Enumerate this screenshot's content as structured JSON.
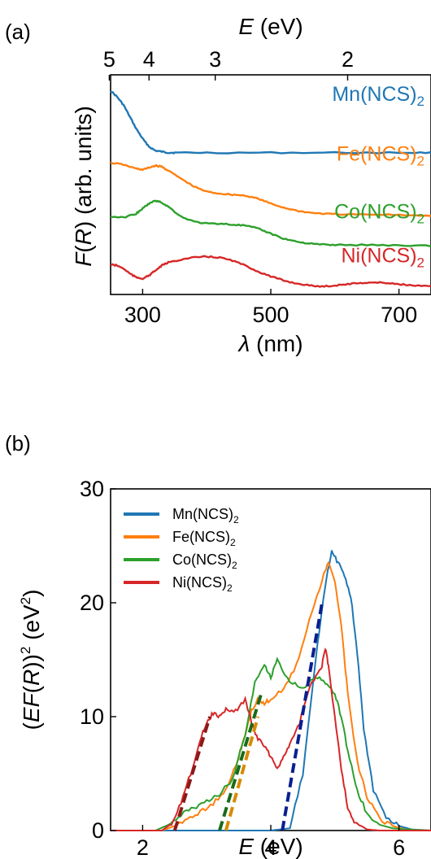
{
  "panel_labels": {
    "a": "(a)",
    "b": "(b)"
  },
  "colors": {
    "Mn": "#1f77b4",
    "Fe": "#ff7f0e",
    "Co": "#2ca02c",
    "Ni": "#d62728",
    "fit_Ni": "#8b1a1a",
    "fit_Co": "#1a6b1a",
    "fit_Fe": "#d88a00",
    "fit_Mn": "#0a1f8f"
  },
  "chart_data": [
    {
      "type": "line",
      "panel": "a",
      "xlabel_prefix": "λ",
      "xlabel_suffix": " (nm)",
      "ylabel_F": "F",
      "ylabel_R": "R",
      "ylabel_suffix": " (arb. units)",
      "top_label_E": "E",
      "top_label_suffix": " (eV)",
      "xlim": [
        250,
        750
      ],
      "xticks": [
        300,
        500,
        700
      ],
      "top_ticks": [
        5,
        4,
        3,
        2
      ],
      "series": [
        {
          "key": "Mn",
          "label": "Mn(NCS)",
          "sub": "2",
          "color": "#1f77b4",
          "x": [
            250,
            260,
            270,
            280,
            290,
            300,
            310,
            320,
            330,
            340,
            350,
            400,
            500,
            600,
            700,
            750
          ],
          "y": [
            9.6,
            9.3,
            8.9,
            8.3,
            7.7,
            7.2,
            6.8,
            6.6,
            6.55,
            6.5,
            6.5,
            6.5,
            6.5,
            6.5,
            6.5,
            6.5
          ]
        },
        {
          "key": "Fe",
          "label": "Fe(NCS)",
          "sub": "2",
          "color": "#ff7f0e",
          "x": [
            250,
            270,
            290,
            300,
            310,
            320,
            330,
            340,
            360,
            380,
            400,
            420,
            440,
            460,
            480,
            500,
            520,
            540,
            560,
            580,
            600,
            650,
            700,
            750
          ],
          "y": [
            6.0,
            5.9,
            5.7,
            5.65,
            5.75,
            5.85,
            5.8,
            5.6,
            5.2,
            4.8,
            4.55,
            4.45,
            4.4,
            4.35,
            4.2,
            3.95,
            3.75,
            3.6,
            3.5,
            3.45,
            3.42,
            3.4,
            3.38,
            3.35
          ]
        },
        {
          "key": "Co",
          "label": "Co(NCS)",
          "sub": "2",
          "color": "#2ca02c",
          "x": [
            250,
            270,
            290,
            300,
            310,
            320,
            330,
            340,
            360,
            380,
            400,
            420,
            440,
            460,
            480,
            500,
            520,
            540,
            560,
            580,
            600,
            650,
            700,
            750
          ],
          "y": [
            3.3,
            3.25,
            3.45,
            3.7,
            3.95,
            4.1,
            4.0,
            3.8,
            3.3,
            3.05,
            2.95,
            2.95,
            2.9,
            2.85,
            2.7,
            2.45,
            2.2,
            2.05,
            1.95,
            1.9,
            1.88,
            1.88,
            1.86,
            1.84
          ]
        },
        {
          "key": "Ni",
          "label": "Ni(NCS)",
          "sub": "2",
          "color": "#d62728",
          "x": [
            250,
            260,
            270,
            280,
            290,
            300,
            310,
            320,
            330,
            340,
            360,
            380,
            400,
            420,
            440,
            460,
            480,
            500,
            520,
            540,
            560,
            580,
            600,
            620,
            640,
            660,
            680,
            700,
            720,
            750
          ],
          "y": [
            0.9,
            0.85,
            0.7,
            0.45,
            0.25,
            0.2,
            0.35,
            0.6,
            0.85,
            1.0,
            1.15,
            1.25,
            1.3,
            1.25,
            1.1,
            0.85,
            0.55,
            0.3,
            0.1,
            -0.05,
            -0.15,
            -0.2,
            -0.15,
            -0.08,
            -0.02,
            0.0,
            -0.02,
            -0.08,
            -0.15,
            -0.2
          ]
        }
      ]
    },
    {
      "type": "line",
      "panel": "b",
      "xlabel_E": "E",
      "xlabel_suffix": " (eV)",
      "ylabel_prefix": "(",
      "ylabel_E": "EF",
      "ylabel_mid": "(",
      "ylabel_R": "R",
      "ylabel_close": "))",
      "ylabel_units_prefix": " (eV",
      "ylabel_units_close": ")",
      "sup": "2",
      "xlim": [
        1.5,
        6.5
      ],
      "ylim": [
        0,
        30
      ],
      "xticks": [
        2,
        4,
        6
      ],
      "yticks": [
        0,
        10,
        20,
        30
      ],
      "legend_position": "top-left",
      "series": [
        {
          "key": "Mn",
          "label": "Mn(NCS)",
          "sub": "2",
          "color": "#1f77b4",
          "x": [
            1.5,
            2.5,
            3.5,
            4.0,
            4.3,
            4.5,
            4.7,
            4.85,
            4.95,
            5.05,
            5.15,
            5.25,
            5.35,
            5.45,
            5.6,
            5.8,
            6.0,
            6.2,
            6.5
          ],
          "y": [
            0,
            0,
            0,
            0,
            0.2,
            5,
            15,
            21.5,
            24.5,
            23.5,
            22.5,
            20.5,
            15.5,
            9,
            3.5,
            1.2,
            0.4,
            0.1,
            0
          ]
        },
        {
          "key": "Fe",
          "label": "Fe(NCS)",
          "sub": "2",
          "color": "#ff7f0e",
          "x": [
            1.5,
            2.3,
            2.5,
            2.7,
            2.9,
            3.1,
            3.3,
            3.5,
            3.6,
            3.7,
            3.8,
            3.9,
            4.0,
            4.2,
            4.4,
            4.6,
            4.8,
            4.9,
            5.0,
            5.1,
            5.2,
            5.35,
            5.5,
            5.7,
            5.9,
            6.1,
            6.5
          ],
          "y": [
            0,
            0,
            0.4,
            1.0,
            1.6,
            2.4,
            3.5,
            6.5,
            8.5,
            10.5,
            11.5,
            11.2,
            11.5,
            12.5,
            14.5,
            18.5,
            22,
            23.5,
            22,
            18,
            12,
            6,
            3,
            1,
            0.4,
            0.1,
            0
          ]
        },
        {
          "key": "Co",
          "label": "Co(NCS)",
          "sub": "2",
          "color": "#2ca02c",
          "x": [
            1.5,
            2.2,
            2.4,
            2.6,
            2.8,
            3.0,
            3.2,
            3.4,
            3.6,
            3.75,
            3.9,
            4.0,
            4.1,
            4.3,
            4.5,
            4.7,
            4.85,
            5.0,
            5.1,
            5.2,
            5.35,
            5.5,
            5.7,
            5.9,
            6.1,
            6.5
          ],
          "y": [
            0,
            0,
            0.5,
            1.4,
            2.0,
            2.6,
            3.2,
            4.5,
            8.5,
            13,
            14.5,
            13.5,
            15,
            13,
            12.5,
            13.5,
            13,
            12,
            10,
            7,
            3.5,
            1.5,
            0.5,
            0.2,
            0.1,
            0
          ]
        },
        {
          "key": "Ni",
          "label": "Ni(NCS)",
          "sub": "2",
          "color": "#d62728",
          "x": [
            1.5,
            2.3,
            2.45,
            2.6,
            2.75,
            2.9,
            3.0,
            3.1,
            3.2,
            3.3,
            3.45,
            3.6,
            3.7,
            3.8,
            3.9,
            4.0,
            4.1,
            4.2,
            4.3,
            4.45,
            4.6,
            4.7,
            4.8,
            4.85,
            4.9,
            5.0,
            5.1,
            5.2,
            5.3,
            5.5,
            5.7,
            6.5
          ],
          "y": [
            0,
            0,
            0.6,
            2.5,
            5,
            8,
            9.5,
            10.3,
            10.0,
            10.6,
            10.5,
            11.5,
            9.5,
            8,
            7.5,
            6.5,
            5.5,
            6.5,
            7.5,
            9.5,
            12.5,
            13.5,
            14.5,
            16,
            14.5,
            10,
            5.5,
            2.0,
            0.8,
            0.1,
            0,
            0
          ]
        }
      ],
      "fits": [
        {
          "key": "Ni",
          "color": "#8b1a1a",
          "x": [
            2.5,
            3.05
          ],
          "y": [
            0,
            10
          ]
        },
        {
          "key": "Co",
          "color": "#1a6b1a",
          "x": [
            3.2,
            3.85
          ],
          "y": [
            0,
            12
          ]
        },
        {
          "key": "Fe",
          "color": "#d88a00",
          "x": [
            3.3,
            3.8
          ],
          "y": [
            0,
            10
          ]
        },
        {
          "key": "Mn",
          "color": "#0a1f8f",
          "x": [
            4.18,
            4.8
          ],
          "y": [
            0,
            20
          ]
        }
      ]
    }
  ]
}
